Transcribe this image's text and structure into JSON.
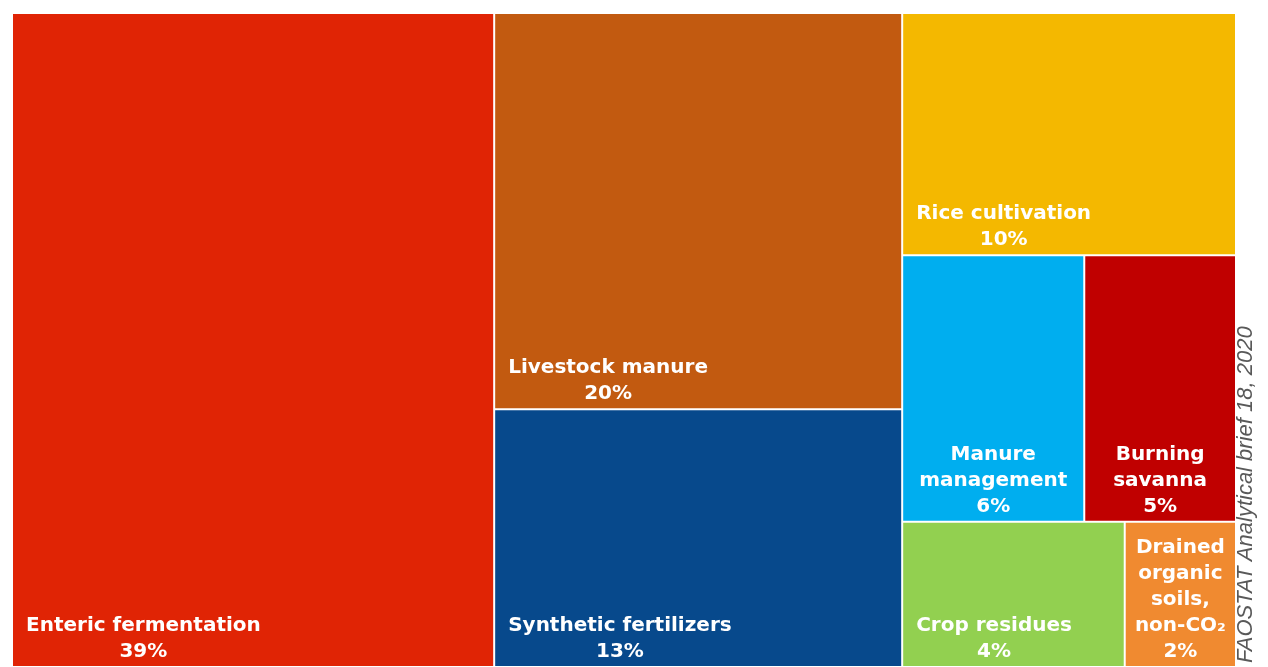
{
  "chart_data": {
    "type": "other",
    "categories": [
      "Enteric fermentation",
      "Livestock manure",
      "Synthetic fertilizers",
      "Rice cultivation",
      "Manure management",
      "Burning savanna",
      "Crop residues",
      "Drained organic soils, non-CO₂"
    ],
    "values": [
      39,
      20,
      13,
      10,
      6,
      5,
      4,
      2
    ],
    "value_labels": [
      "39%",
      "20%",
      "13%",
      "10%",
      "6%",
      "5%",
      "4%",
      "2%"
    ],
    "colors": [
      "#e02405",
      "#c25a10",
      "#07498c",
      "#f4b800",
      "#00aeef",
      "#c00000",
      "#92d050",
      "#f08a30"
    ],
    "annotations": [
      "FAOSTAT Analytical brief 18, 2020"
    ]
  }
}
